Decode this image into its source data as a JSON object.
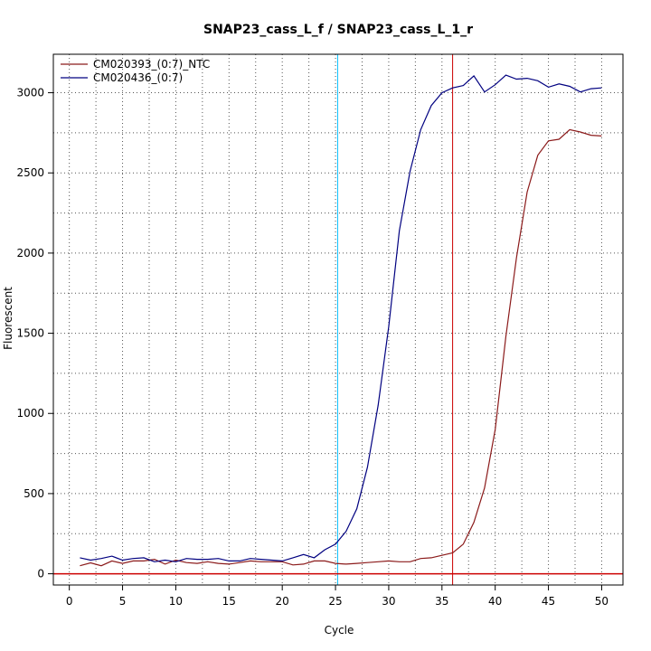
{
  "chart_data": {
    "type": "line",
    "title": "SNAP23_cass_L_f / SNAP23_cass_L_1_r",
    "xlabel": "Cycle",
    "ylabel": "Fluorescent",
    "xlim": [
      -1.5,
      52
    ],
    "ylim": [
      -70,
      3240
    ],
    "x_ticks": [
      0,
      5,
      10,
      15,
      20,
      25,
      30,
      35,
      40,
      45,
      50
    ],
    "y_ticks": [
      0,
      500,
      1000,
      1500,
      2000,
      2500,
      3000
    ],
    "grid": true,
    "legend_position": "top-left",
    "x": [
      1,
      2,
      3,
      4,
      5,
      6,
      7,
      8,
      9,
      10,
      11,
      12,
      13,
      14,
      15,
      16,
      17,
      18,
      19,
      20,
      21,
      22,
      23,
      24,
      25,
      26,
      27,
      28,
      29,
      30,
      31,
      32,
      33,
      34,
      35,
      36,
      37,
      38,
      39,
      40,
      41,
      42,
      43,
      44,
      45,
      46,
      47,
      48,
      49,
      50
    ],
    "series": [
      {
        "name": "CM020393_(0:7)_NTC",
        "color": "#8b1a1a",
        "values": [
          50,
          68,
          50,
          80,
          65,
          80,
          80,
          90,
          60,
          85,
          70,
          65,
          75,
          65,
          60,
          70,
          80,
          75,
          75,
          75,
          55,
          60,
          80,
          80,
          65,
          60,
          65,
          70,
          75,
          80,
          75,
          75,
          95,
          100,
          115,
          130,
          185,
          320,
          535,
          900,
          1480,
          1970,
          2380,
          2610,
          2700,
          2710,
          2770,
          2755,
          2735,
          2730
        ]
      },
      {
        "name": "CM020436_(0:7)",
        "color": "#000080",
        "values": [
          100,
          85,
          95,
          110,
          85,
          95,
          100,
          75,
          85,
          75,
          95,
          90,
          90,
          95,
          80,
          80,
          95,
          90,
          85,
          80,
          100,
          120,
          100,
          150,
          185,
          265,
          405,
          665,
          1050,
          1540,
          2140,
          2510,
          2770,
          2920,
          3000,
          3030,
          3045,
          3105,
          3005,
          3050,
          3110,
          3085,
          3090,
          3075,
          3035,
          3055,
          3040,
          3005,
          3025,
          3030
        ]
      }
    ],
    "reference_lines": {
      "threshold_y": 0,
      "threshold_color": "#cc0000",
      "vertical_cyan_x": 25.2,
      "vertical_cyan_color": "#00bfff",
      "vertical_red_x": 36.0,
      "vertical_red_color": "#cc0000"
    }
  }
}
